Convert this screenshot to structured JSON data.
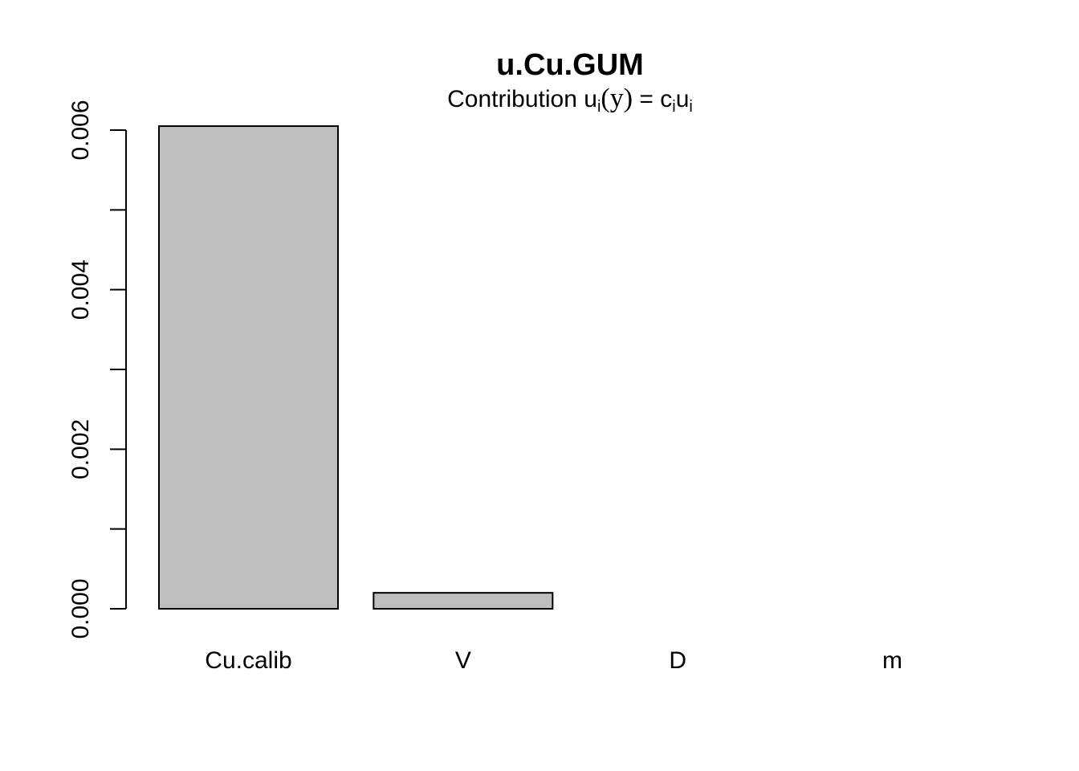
{
  "chart_data": {
    "type": "bar",
    "title": "u.Cu.GUM",
    "subtitle": {
      "prefix": "Contribution u",
      "sub1": "i",
      "open": "(",
      "var": "y",
      "close": ")",
      "eq": " = c",
      "sub2": "i",
      "mid": "u",
      "sub3": "i"
    },
    "categories": [
      "Cu.calib",
      "V",
      "D",
      "m"
    ],
    "values": [
      0.00605,
      0.0002,
      0.0,
      0.0
    ],
    "ylim": [
      0,
      0.006
    ],
    "yticks": [
      0,
      0.001,
      0.002,
      0.003,
      0.004,
      0.005,
      0.006
    ],
    "ytick_labels": [
      "0.000",
      "",
      "0.002",
      "",
      "0.004",
      "",
      "0.006"
    ],
    "xlabel": "",
    "ylabel": "",
    "grid": false,
    "colors": {
      "bar_fill": "#bebebe",
      "bar_stroke": "#000000",
      "axis": "#000000"
    }
  }
}
